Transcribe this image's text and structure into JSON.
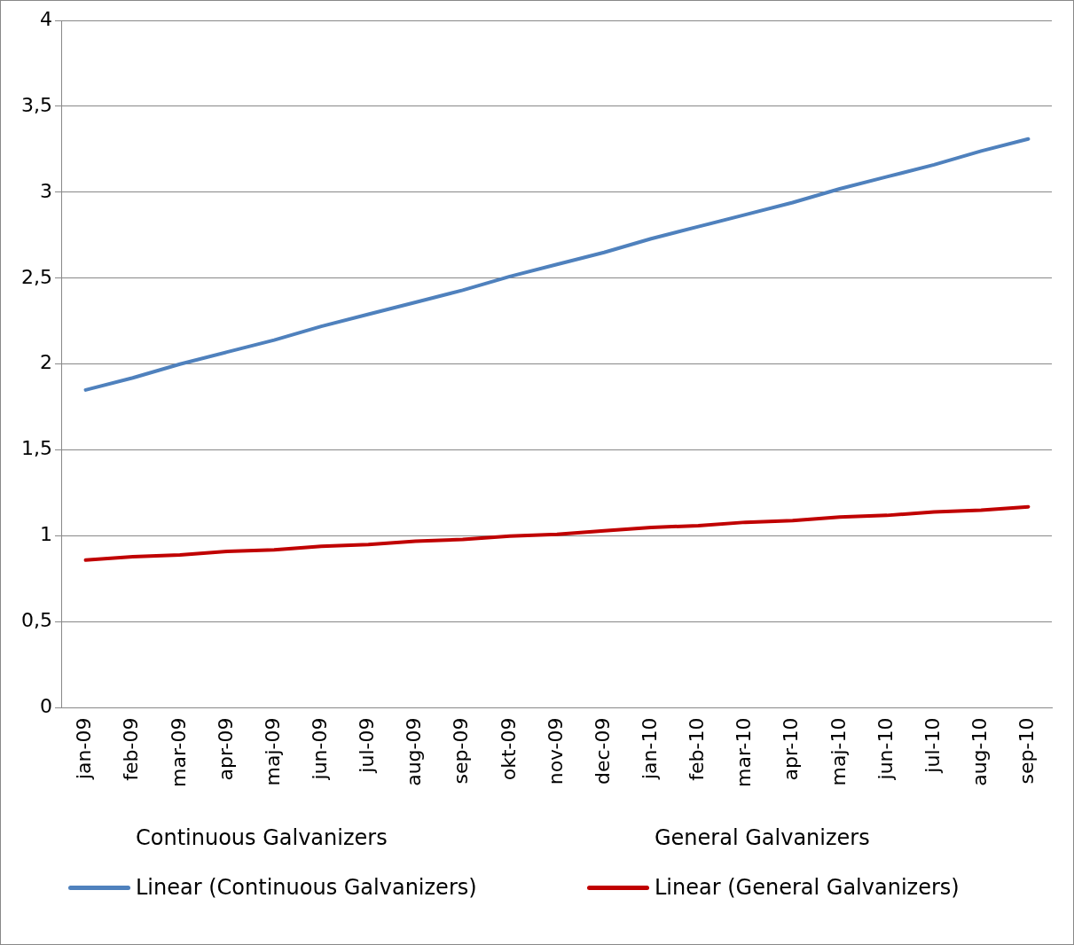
{
  "chart_data": {
    "type": "line",
    "categories": [
      "jan-09",
      "feb-09",
      "mar-09",
      "apr-09",
      "maj-09",
      "jun-09",
      "jul-09",
      "aug-09",
      "sep-09",
      "okt-09",
      "nov-09",
      "dec-09",
      "jan-10",
      "feb-10",
      "mar-10",
      "apr-10",
      "maj-10",
      "jun-10",
      "jul-10",
      "aug-10",
      "sep-10"
    ],
    "series": [
      {
        "name": "Continuous Galvanizers",
        "values": [
          null,
          null,
          null,
          null,
          null,
          null,
          null,
          null,
          null,
          null,
          null,
          null,
          null,
          null,
          null,
          null,
          null,
          null,
          null,
          null,
          null
        ]
      },
      {
        "name": "General Galvanizers",
        "values": [
          null,
          null,
          null,
          null,
          null,
          null,
          null,
          null,
          null,
          null,
          null,
          null,
          null,
          null,
          null,
          null,
          null,
          null,
          null,
          null,
          null
        ]
      },
      {
        "name": "Linear (Continuous Galvanizers)",
        "color": "#4f81bd",
        "values": [
          1.85,
          1.92,
          2.0,
          2.07,
          2.14,
          2.22,
          2.29,
          2.36,
          2.43,
          2.51,
          2.58,
          2.65,
          2.73,
          2.8,
          2.87,
          2.94,
          3.02,
          3.09,
          3.16,
          3.24,
          3.31
        ]
      },
      {
        "name": "Linear (General Galvanizers)",
        "color": "#c00000",
        "values": [
          0.86,
          0.88,
          0.89,
          0.91,
          0.92,
          0.94,
          0.95,
          0.97,
          0.98,
          1.0,
          1.01,
          1.03,
          1.05,
          1.06,
          1.08,
          1.09,
          1.11,
          1.12,
          1.14,
          1.15,
          1.17
        ]
      }
    ],
    "ylim": [
      0,
      4
    ],
    "yticks": [
      {
        "value": 0,
        "label": "0"
      },
      {
        "value": 0.5,
        "label": "0,5"
      },
      {
        "value": 1,
        "label": "1"
      },
      {
        "value": 1.5,
        "label": "1,5"
      },
      {
        "value": 2,
        "label": "2"
      },
      {
        "value": 2.5,
        "label": "2,5"
      },
      {
        "value": 3,
        "label": "3"
      },
      {
        "value": 3.5,
        "label": "3,5"
      },
      {
        "value": 4,
        "label": "4"
      }
    ],
    "grid": "y",
    "legend": "bottom",
    "marker": "none",
    "line_style": "solid"
  }
}
